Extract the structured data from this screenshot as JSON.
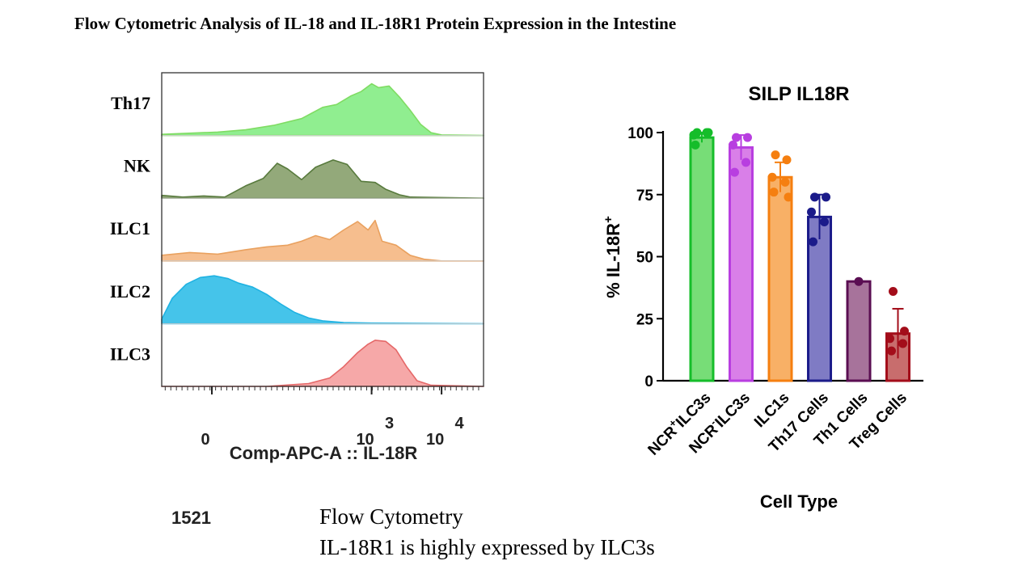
{
  "slide": {
    "title": "Flow Cytometric Analysis of IL-18 and IL-18R1 Protein Expression in the Intestine",
    "code": "1521",
    "caption_line1": "Flow Cytometry",
    "caption_line2": "IL-18R1 is highly expressed by ILC3s"
  },
  "chart_data": [
    {
      "type": "area",
      "subtype": "histogram-overlay",
      "xlabel": "Comp-APC-A :: IL-18R",
      "x_ticks": [
        {
          "label": "0",
          "value": 0
        },
        {
          "label": "10",
          "exp": "3",
          "value": 1000
        },
        {
          "label": "10",
          "exp": "4",
          "value": 10000
        }
      ],
      "x_range_log10": [
        0,
        4.6
      ],
      "series": [
        {
          "name": "Th17",
          "color": "#90ee90",
          "line": "#7fdc63",
          "points": [
            [
              0,
              0.02
            ],
            [
              0.8,
              0.06
            ],
            [
              1.2,
              0.1
            ],
            [
              1.6,
              0.18
            ],
            [
              2.0,
              0.3
            ],
            [
              2.3,
              0.5
            ],
            [
              2.5,
              0.55
            ],
            [
              2.7,
              0.7
            ],
            [
              2.85,
              0.78
            ],
            [
              3.0,
              0.92
            ],
            [
              3.1,
              0.85
            ],
            [
              3.25,
              0.88
            ],
            [
              3.4,
              0.68
            ],
            [
              3.55,
              0.45
            ],
            [
              3.7,
              0.2
            ],
            [
              3.85,
              0.05
            ],
            [
              4.0,
              0.01
            ],
            [
              4.6,
              0.0
            ]
          ]
        },
        {
          "name": "NK",
          "color": "#93a97a",
          "line": "#587a3d",
          "points": [
            [
              0,
              0.05
            ],
            [
              0.3,
              0.02
            ],
            [
              0.6,
              0.04
            ],
            [
              0.9,
              0.02
            ],
            [
              1.2,
              0.22
            ],
            [
              1.45,
              0.35
            ],
            [
              1.65,
              0.62
            ],
            [
              1.8,
              0.52
            ],
            [
              2.0,
              0.33
            ],
            [
              2.2,
              0.55
            ],
            [
              2.45,
              0.68
            ],
            [
              2.65,
              0.6
            ],
            [
              2.85,
              0.3
            ],
            [
              3.05,
              0.28
            ],
            [
              3.2,
              0.16
            ],
            [
              3.4,
              0.06
            ],
            [
              3.55,
              0.02
            ],
            [
              4.6,
              0.0
            ]
          ]
        },
        {
          "name": "ILC1",
          "color": "#f6be8e",
          "line": "#e9a15f",
          "points": [
            [
              0,
              0.1
            ],
            [
              0.4,
              0.15
            ],
            [
              0.8,
              0.12
            ],
            [
              1.2,
              0.2
            ],
            [
              1.5,
              0.25
            ],
            [
              1.8,
              0.28
            ],
            [
              2.0,
              0.35
            ],
            [
              2.2,
              0.45
            ],
            [
              2.4,
              0.38
            ],
            [
              2.6,
              0.55
            ],
            [
              2.8,
              0.7
            ],
            [
              2.95,
              0.55
            ],
            [
              3.05,
              0.72
            ],
            [
              3.15,
              0.35
            ],
            [
              3.35,
              0.28
            ],
            [
              3.55,
              0.1
            ],
            [
              3.75,
              0.03
            ],
            [
              4.0,
              0.0
            ],
            [
              4.6,
              0.0
            ]
          ]
        },
        {
          "name": "ILC2",
          "color": "#45c4ea",
          "line": "#1fb2e2",
          "points": [
            [
              0,
              0.08
            ],
            [
              0.15,
              0.45
            ],
            [
              0.35,
              0.7
            ],
            [
              0.55,
              0.82
            ],
            [
              0.75,
              0.85
            ],
            [
              0.95,
              0.8
            ],
            [
              1.1,
              0.72
            ],
            [
              1.3,
              0.65
            ],
            [
              1.5,
              0.52
            ],
            [
              1.7,
              0.35
            ],
            [
              1.9,
              0.2
            ],
            [
              2.1,
              0.1
            ],
            [
              2.3,
              0.05
            ],
            [
              2.6,
              0.02
            ],
            [
              3.0,
              0.01
            ],
            [
              4.6,
              0.0
            ]
          ]
        },
        {
          "name": "ILC3",
          "color": "#f6a8a8",
          "line": "#e56868",
          "points": [
            [
              0,
              0.0
            ],
            [
              1.5,
              0.0
            ],
            [
              2.1,
              0.05
            ],
            [
              2.4,
              0.15
            ],
            [
              2.6,
              0.35
            ],
            [
              2.8,
              0.6
            ],
            [
              2.95,
              0.75
            ],
            [
              3.05,
              0.82
            ],
            [
              3.2,
              0.8
            ],
            [
              3.35,
              0.65
            ],
            [
              3.5,
              0.35
            ],
            [
              3.65,
              0.1
            ],
            [
              3.85,
              0.02
            ],
            [
              4.6,
              0.0
            ]
          ]
        }
      ]
    },
    {
      "type": "bar",
      "title": "SILP IL18R",
      "xlabel": "Cell Type",
      "ylabel": "% IL-18R",
      "ylabel_sup": "+",
      "ylim": [
        0,
        100
      ],
      "yticks": [
        0,
        25,
        50,
        75,
        100
      ],
      "categories": [
        {
          "pre": "NCR",
          "sup": "+",
          "post": "ILC3s"
        },
        {
          "pre": "NCR",
          "sup": "-",
          "post": "ILC3s"
        },
        {
          "pre": "ILC1s",
          "sup": "",
          "post": ""
        },
        {
          "pre": "Th17 Cells",
          "sup": "",
          "post": ""
        },
        {
          "pre": "Th1 Cells",
          "sup": "",
          "post": ""
        },
        {
          "pre": "Treg Cells",
          "sup": "",
          "post": ""
        }
      ],
      "values": [
        98,
        94,
        82,
        66,
        40,
        19
      ],
      "error": [
        2,
        5,
        6,
        9,
        0,
        10
      ],
      "points": [
        [
          100,
          100,
          99,
          100,
          95
        ],
        [
          98,
          98,
          95,
          88,
          84
        ],
        [
          91,
          89,
          82,
          80,
          76,
          74
        ],
        [
          74,
          74,
          68,
          64,
          56
        ],
        [
          40
        ],
        [
          36,
          20,
          17,
          15,
          12
        ]
      ],
      "colors": {
        "fill": [
          "#77dd77",
          "#d97fe8",
          "#f8b066",
          "#7f7bc4",
          "#a7739b",
          "#c86d6d"
        ],
        "edge": [
          "#15bd2a",
          "#b83ee0",
          "#f57f10",
          "#1b1b8a",
          "#5a0e52",
          "#a30d1a"
        ]
      }
    }
  ]
}
